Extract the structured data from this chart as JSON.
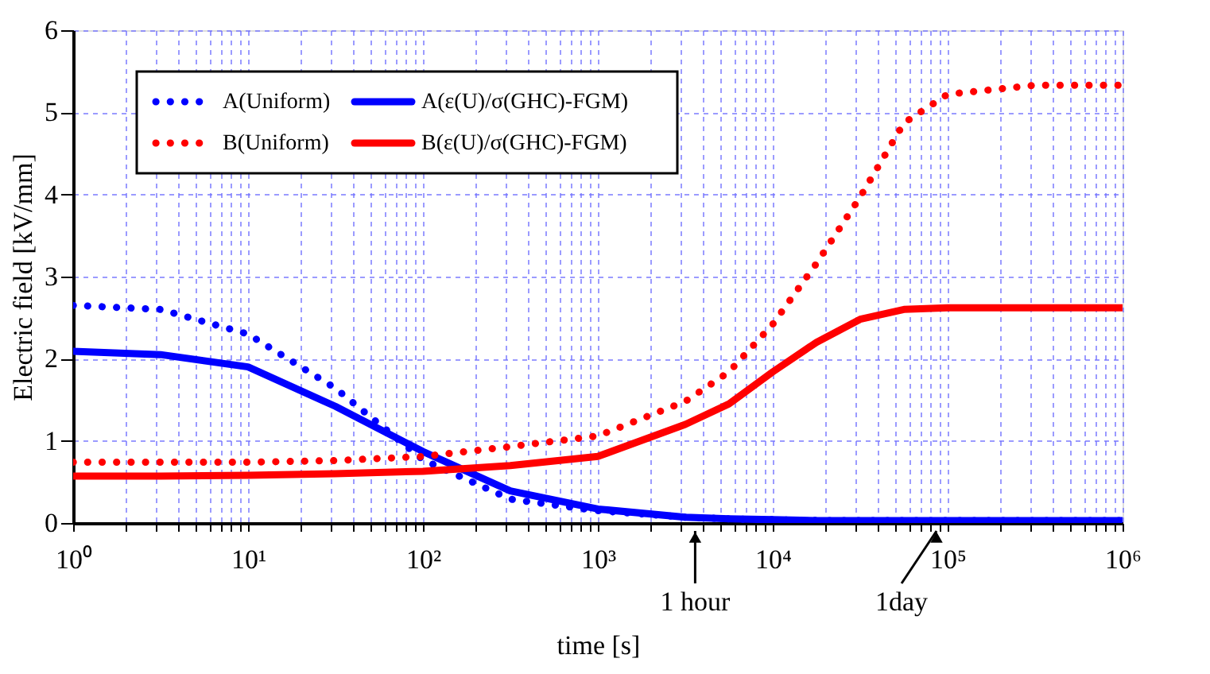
{
  "chart_data": {
    "type": "line",
    "xlabel": "time [s]",
    "ylabel": "Electric field [kV/mm]",
    "x": [
      1,
      3.16,
      10,
      31.6,
      100,
      316,
      1000,
      3162,
      5623,
      10000,
      17783,
      31623,
      56234,
      100000,
      316228,
      1000000
    ],
    "series": [
      {
        "name": "A(Uniform)",
        "color": "#0000ff",
        "line_style": "dotted",
        "values": [
          2.65,
          2.6,
          2.3,
          1.64,
          0.77,
          0.29,
          0.15,
          0.07,
          0.05,
          0.04,
          0.03,
          0.03,
          0.03,
          0.03,
          0.03,
          0.03
        ]
      },
      {
        "name": "A(ε(U)/σ(GHC)-FGM)",
        "color": "#0000ff",
        "line_style": "solid",
        "values": [
          2.09,
          2.05,
          1.9,
          1.42,
          0.87,
          0.39,
          0.17,
          0.07,
          0.05,
          0.04,
          0.03,
          0.03,
          0.03,
          0.03,
          0.03,
          0.03
        ]
      },
      {
        "name": "B(Uniform)",
        "color": "#ff0000",
        "line_style": "dotted",
        "values": [
          0.74,
          0.74,
          0.74,
          0.76,
          0.81,
          0.93,
          1.06,
          1.48,
          1.84,
          2.42,
          3.16,
          3.97,
          4.87,
          5.22,
          5.33,
          5.33
        ]
      },
      {
        "name": "B(ε(U)/σ(GHC)-FGM)",
        "color": "#ff0000",
        "line_style": "solid",
        "values": [
          0.57,
          0.57,
          0.58,
          0.6,
          0.63,
          0.7,
          0.81,
          1.2,
          1.45,
          1.84,
          2.2,
          2.48,
          2.6,
          2.62,
          2.62,
          2.62
        ]
      }
    ],
    "xlim": [
      1,
      1000000
    ],
    "ylim": [
      0,
      6
    ],
    "log": "x",
    "xticks": [
      {
        "value": 1,
        "label": "10⁰"
      },
      {
        "value": 2,
        "label": null
      },
      {
        "value": 3,
        "label": null
      },
      {
        "value": 4,
        "label": null
      },
      {
        "value": 5,
        "label": null
      },
      {
        "value": 6,
        "label": null
      },
      {
        "value": 7,
        "label": null
      },
      {
        "value": 8,
        "label": null
      },
      {
        "value": 9,
        "label": null
      },
      {
        "value": 10,
        "label": "10¹"
      },
      {
        "value": 20,
        "label": null
      },
      {
        "value": 30,
        "label": null
      },
      {
        "value": 40,
        "label": null
      },
      {
        "value": 50,
        "label": null
      },
      {
        "value": 60,
        "label": null
      },
      {
        "value": 70,
        "label": null
      },
      {
        "value": 80,
        "label": null
      },
      {
        "value": 90,
        "label": null
      },
      {
        "value": 100,
        "label": "10²"
      },
      {
        "value": 200,
        "label": null
      },
      {
        "value": 300,
        "label": null
      },
      {
        "value": 400,
        "label": null
      },
      {
        "value": 500,
        "label": null
      },
      {
        "value": 600,
        "label": null
      },
      {
        "value": 700,
        "label": null
      },
      {
        "value": 800,
        "label": null
      },
      {
        "value": 900,
        "label": null
      },
      {
        "value": 1000,
        "label": "10³"
      },
      {
        "value": 2000,
        "label": null
      },
      {
        "value": 3000,
        "label": null
      },
      {
        "value": 4000,
        "label": null
      },
      {
        "value": 5000,
        "label": null
      },
      {
        "value": 6000,
        "label": null
      },
      {
        "value": 7000,
        "label": null
      },
      {
        "value": 8000,
        "label": null
      },
      {
        "value": 9000,
        "label": null
      },
      {
        "value": 10000,
        "label": "10⁴"
      },
      {
        "value": 20000,
        "label": null
      },
      {
        "value": 30000,
        "label": null
      },
      {
        "value": 40000,
        "label": null
      },
      {
        "value": 50000,
        "label": null
      },
      {
        "value": 60000,
        "label": null
      },
      {
        "value": 70000,
        "label": null
      },
      {
        "value": 80000,
        "label": null
      },
      {
        "value": 90000,
        "label": null
      },
      {
        "value": 100000,
        "label": "10⁵"
      },
      {
        "value": 200000,
        "label": null
      },
      {
        "value": 300000,
        "label": null
      },
      {
        "value": 400000,
        "label": null
      },
      {
        "value": 500000,
        "label": null
      },
      {
        "value": 600000,
        "label": null
      },
      {
        "value": 700000,
        "label": null
      },
      {
        "value": 800000,
        "label": null
      },
      {
        "value": 900000,
        "label": null
      },
      {
        "value": 1000000,
        "label": "10⁶"
      }
    ],
    "yticks": [
      0,
      1,
      2,
      3,
      4,
      5,
      6
    ],
    "grid": true,
    "legend": "top left",
    "marker": "none",
    "annotations": [
      {
        "text": "1 hour",
        "x": 3600,
        "y": 0
      },
      {
        "text": "1day",
        "x": 86400,
        "y": 0
      }
    ]
  }
}
